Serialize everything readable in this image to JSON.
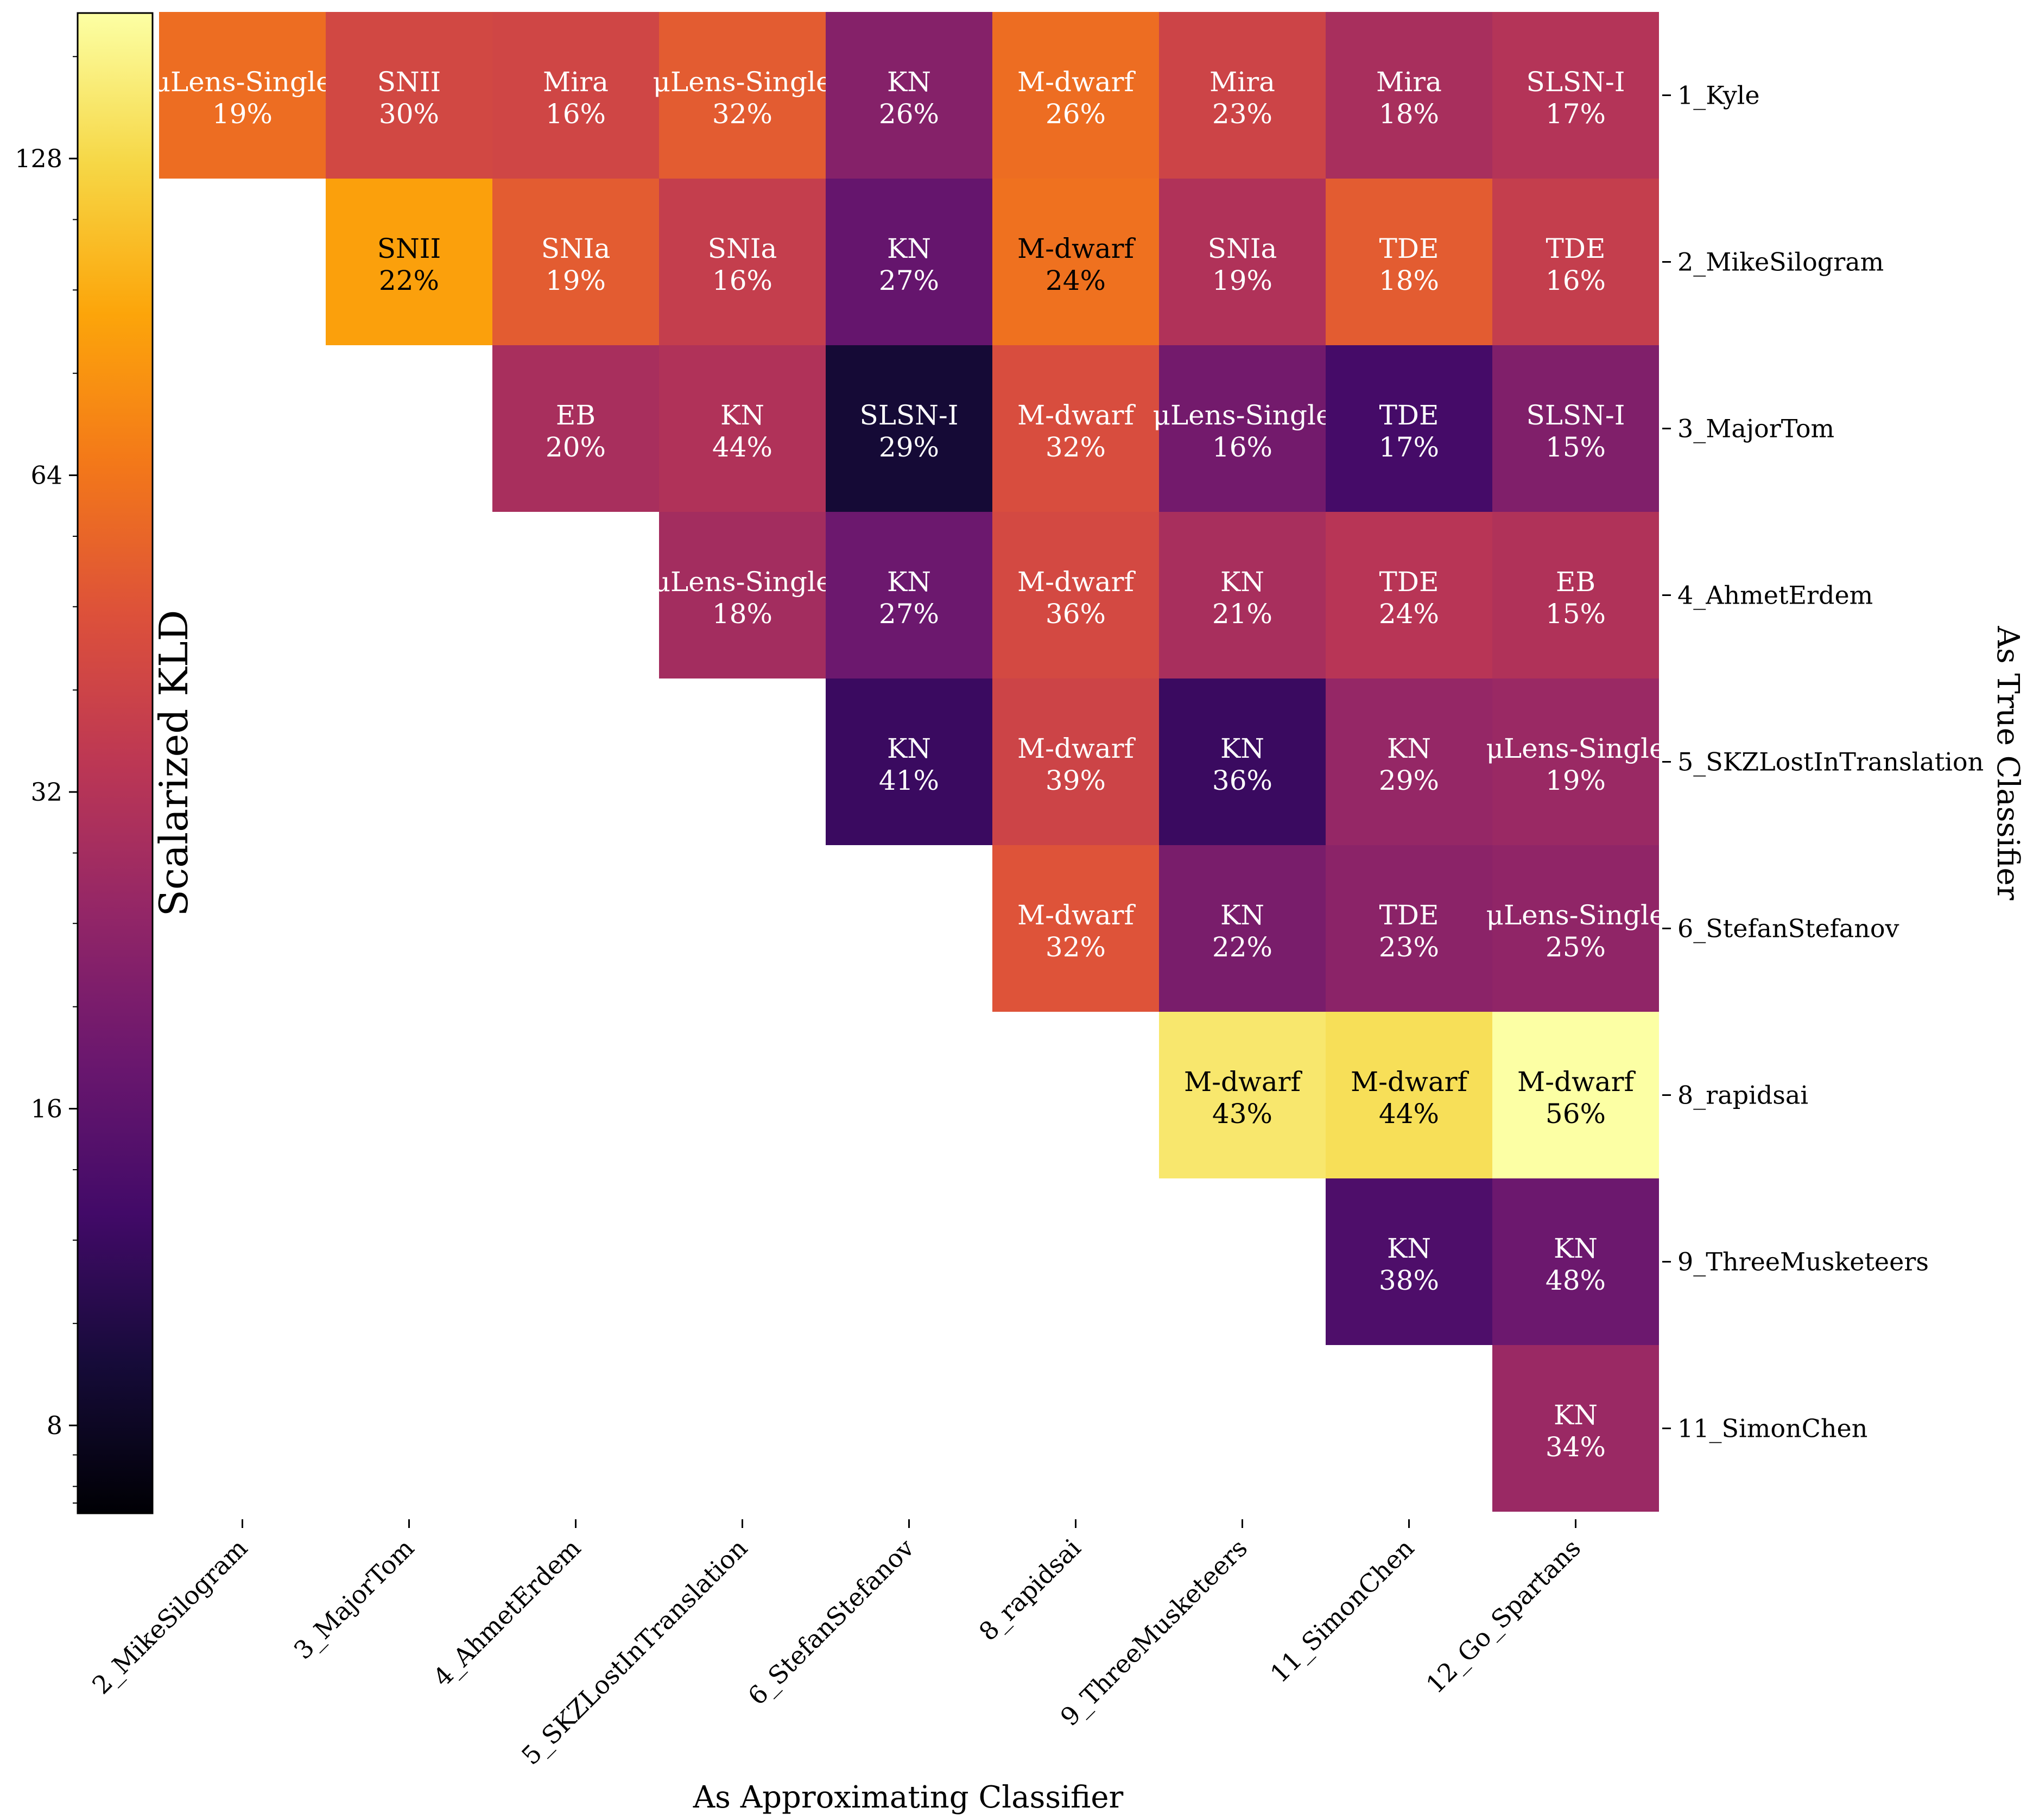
{
  "chart_data": {
    "type": "heatmap",
    "colormap": "inferno",
    "xlabel": "As Approximating Classifier",
    "ylabel": "As True Classifier",
    "colorbar": {
      "label": "Scalarized KLD",
      "scale": "log2",
      "range": [
        6.6,
        176
      ],
      "ticks": [
        8,
        16,
        32,
        64,
        128
      ],
      "tick_labels": [
        "8",
        "16",
        "32",
        "64",
        "128"
      ]
    },
    "x_categories": [
      "2_MikeSilogram",
      "3_MajorTom",
      "4_AhmetErdem",
      "5_SKZLostInTranslation",
      "6_StefanStefanov",
      "8_rapidsai",
      "9_ThreeMusketeers",
      "11_SimonChen",
      "12_Go_Spartans"
    ],
    "y_categories": [
      "1_Kyle",
      "2_MikeSilogram",
      "3_MajorTom",
      "4_AhmetErdem",
      "5_SKZLostInTranslation",
      "6_StefanStefanov",
      "8_rapidsai",
      "9_ThreeMusketeers",
      "11_SimonChen"
    ],
    "cells": [
      {
        "row": 0,
        "col": 0,
        "value": 60,
        "class": "μLens-Single",
        "pct": "19%"
      },
      {
        "row": 0,
        "col": 1,
        "value": 42,
        "class": "SNII",
        "pct": "30%"
      },
      {
        "row": 0,
        "col": 2,
        "value": 41,
        "class": "Mira",
        "pct": "16%"
      },
      {
        "row": 0,
        "col": 3,
        "value": 52,
        "class": "μLens-Single",
        "pct": "32%"
      },
      {
        "row": 0,
        "col": 4,
        "value": 22,
        "class": "KN",
        "pct": "26%"
      },
      {
        "row": 0,
        "col": 5,
        "value": 60,
        "class": "M-dwarf",
        "pct": "26%"
      },
      {
        "row": 0,
        "col": 6,
        "value": 40,
        "class": "Mira",
        "pct": "23%"
      },
      {
        "row": 0,
        "col": 7,
        "value": 29,
        "class": "Mira",
        "pct": "18%"
      },
      {
        "row": 0,
        "col": 8,
        "value": 32,
        "class": "SLSN-I",
        "pct": "17%"
      },
      {
        "row": 1,
        "col": 1,
        "value": 88,
        "class": "SNII",
        "pct": "22%"
      },
      {
        "row": 1,
        "col": 2,
        "value": 52,
        "class": "SNIa",
        "pct": "19%"
      },
      {
        "row": 1,
        "col": 3,
        "value": 37,
        "class": "SNIa",
        "pct": "16%"
      },
      {
        "row": 1,
        "col": 4,
        "value": 17,
        "class": "KN",
        "pct": "27%"
      },
      {
        "row": 1,
        "col": 5,
        "value": 62,
        "class": "M-dwarf",
        "pct": "24%"
      },
      {
        "row": 1,
        "col": 6,
        "value": 31,
        "class": "SNIa",
        "pct": "19%"
      },
      {
        "row": 1,
        "col": 7,
        "value": 52,
        "class": "TDE",
        "pct": "18%"
      },
      {
        "row": 1,
        "col": 8,
        "value": 37,
        "class": "TDE",
        "pct": "16%"
      },
      {
        "row": 2,
        "col": 2,
        "value": 29,
        "class": "EB",
        "pct": "20%"
      },
      {
        "row": 2,
        "col": 3,
        "value": 31,
        "class": "KN",
        "pct": "44%"
      },
      {
        "row": 2,
        "col": 4,
        "value": 9,
        "class": "SLSN-I",
        "pct": "29%"
      },
      {
        "row": 2,
        "col": 5,
        "value": 45,
        "class": "M-dwarf",
        "pct": "32%"
      },
      {
        "row": 2,
        "col": 6,
        "value": 19,
        "class": "μLens-Single",
        "pct": "16%"
      },
      {
        "row": 2,
        "col": 7,
        "value": 13,
        "class": "TDE",
        "pct": "17%"
      },
      {
        "row": 2,
        "col": 8,
        "value": 21,
        "class": "SLSN-I",
        "pct": "15%"
      },
      {
        "row": 3,
        "col": 3,
        "value": 28,
        "class": "μLens-Single",
        "pct": "18%"
      },
      {
        "row": 3,
        "col": 4,
        "value": 18,
        "class": "KN",
        "pct": "27%"
      },
      {
        "row": 3,
        "col": 5,
        "value": 43,
        "class": "M-dwarf",
        "pct": "36%"
      },
      {
        "row": 3,
        "col": 6,
        "value": 29,
        "class": "KN",
        "pct": "21%"
      },
      {
        "row": 3,
        "col": 7,
        "value": 33,
        "class": "TDE",
        "pct": "24%"
      },
      {
        "row": 3,
        "col": 8,
        "value": 31,
        "class": "EB",
        "pct": "15%"
      },
      {
        "row": 4,
        "col": 4,
        "value": 12,
        "class": "KN",
        "pct": "41%"
      },
      {
        "row": 4,
        "col": 5,
        "value": 40,
        "class": "M-dwarf",
        "pct": "39%"
      },
      {
        "row": 4,
        "col": 6,
        "value": 12,
        "class": "KN",
        "pct": "36%"
      },
      {
        "row": 4,
        "col": 7,
        "value": 25,
        "class": "KN",
        "pct": "29%"
      },
      {
        "row": 4,
        "col": 8,
        "value": 26,
        "class": "μLens-Single",
        "pct": "19%"
      },
      {
        "row": 5,
        "col": 5,
        "value": 48,
        "class": "M-dwarf",
        "pct": "32%"
      },
      {
        "row": 5,
        "col": 6,
        "value": 20,
        "class": "KN",
        "pct": "22%"
      },
      {
        "row": 5,
        "col": 7,
        "value": 23,
        "class": "TDE",
        "pct": "23%"
      },
      {
        "row": 5,
        "col": 8,
        "value": 24,
        "class": "μLens-Single",
        "pct": "25%"
      },
      {
        "row": 6,
        "col": 6,
        "value": 145,
        "class": "M-dwarf",
        "pct": "43%"
      },
      {
        "row": 6,
        "col": 7,
        "value": 135,
        "class": "M-dwarf",
        "pct": "44%"
      },
      {
        "row": 6,
        "col": 8,
        "value": 176,
        "class": "M-dwarf",
        "pct": "56%"
      },
      {
        "row": 7,
        "col": 7,
        "value": 14,
        "class": "KN",
        "pct": "38%"
      },
      {
        "row": 7,
        "col": 8,
        "value": 18,
        "class": "KN",
        "pct": "48%"
      },
      {
        "row": 8,
        "col": 8,
        "value": 26,
        "class": "KN",
        "pct": "34%"
      }
    ]
  }
}
